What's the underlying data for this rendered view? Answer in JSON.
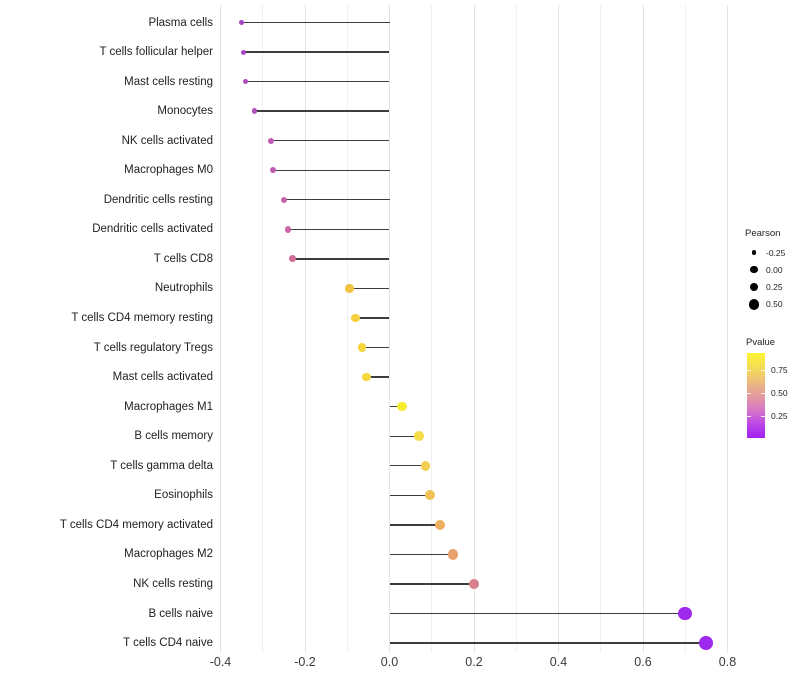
{
  "chart_data": {
    "type": "scatter",
    "variant": "horizontal-lollipop",
    "title": "",
    "xlabel": "",
    "ylabel": "",
    "xlim": [
      -0.41,
      0.83
    ],
    "x_ticks": [
      "-0.4",
      "-0.2",
      "0.0",
      "0.2",
      "0.4",
      "0.6",
      "0.8"
    ],
    "x_tick_values": [
      -0.4,
      -0.2,
      0.0,
      0.2,
      0.4,
      0.6,
      0.8
    ],
    "grid": "vertical major and minor, no axis lines",
    "baseline": 0,
    "categories": [
      "Plasma cells",
      "T cells follicular helper",
      "Mast cells resting",
      "Monocytes",
      "NK cells activated",
      "Macrophages M0",
      "Dendritic cells resting",
      "Dendritic cells activated",
      "T cells CD8",
      "Neutrophils",
      "T cells CD4 memory resting",
      "T cells regulatory  Tregs",
      "Mast cells activated",
      "Macrophages M1",
      "B cells memory",
      "T cells gamma delta",
      "Eosinophils",
      "T cells CD4 memory activated",
      "Macrophages M2",
      "NK cells resting",
      "B cells naive",
      "T cells CD4 naive"
    ],
    "series": [
      {
        "name": "Pearson",
        "values": [
          -0.35,
          -0.345,
          -0.34,
          -0.32,
          -0.28,
          -0.275,
          -0.25,
          -0.24,
          -0.23,
          -0.095,
          -0.08,
          -0.065,
          -0.055,
          0.03,
          0.07,
          0.085,
          0.095,
          0.12,
          0.15,
          0.2,
          0.7,
          0.75
        ]
      }
    ],
    "pvalue_approx": [
      0.18,
      0.19,
      0.21,
      0.23,
      0.28,
      0.29,
      0.33,
      0.34,
      0.37,
      0.62,
      0.68,
      0.7,
      0.72,
      0.85,
      0.75,
      0.68,
      0.63,
      0.55,
      0.5,
      0.4,
      0.05,
      0.04
    ],
    "point_colors": [
      "#a843c6",
      "#ab46c4",
      "#b04cc0",
      "#b350bc",
      "#c05ab4",
      "#c25cb2",
      "#c863a8",
      "#ca66a4",
      "#d06e97",
      "#f0c441",
      "#f3d13e",
      "#f4d53c",
      "#f5d83b",
      "#f8ec2e",
      "#f5dd4a",
      "#f2cf52",
      "#f0c257",
      "#ecaf62",
      "#e8a06d",
      "#d8808d",
      "#9d28ee",
      "#9d28ee"
    ],
    "legend_size": {
      "title": "Pearson",
      "items": [
        "-0.25",
        "0.00",
        "0.25",
        "0.50"
      ],
      "item_values": [
        -0.25,
        0.0,
        0.25,
        0.5
      ],
      "dot_color": "#000000"
    },
    "legend_color": {
      "title": "Pvalue",
      "ticks": [
        "0.75",
        "0.50",
        "0.25"
      ],
      "tick_values": [
        0.75,
        0.5,
        0.25
      ],
      "gradient_stops": [
        "#fcf434",
        "#f4de55",
        "#edbd7c",
        "#e49b9d",
        "#d877c5",
        "#bc49e6",
        "#a21ff3"
      ]
    }
  },
  "colors": {
    "background": "#ffffff",
    "stem": "#3c3c3c",
    "grid_major": "#e2e2e2",
    "grid_minor": "#f0f0f0",
    "tick_label": "#3a3a3a",
    "category_label": "#1f1f1f"
  }
}
